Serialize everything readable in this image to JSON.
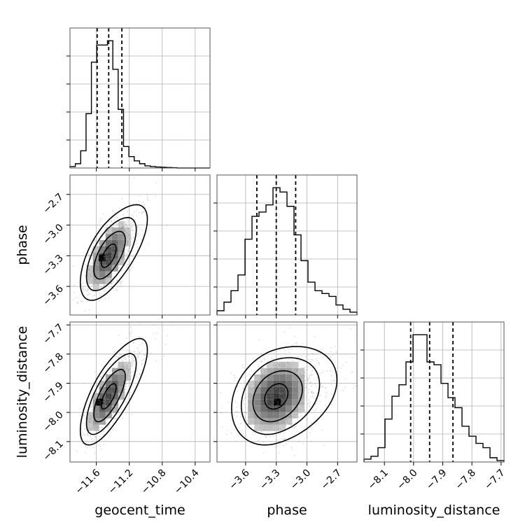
{
  "chart_data": {
    "type": "corner",
    "parameters": [
      "geocent_time",
      "phase",
      "luminosity_distance"
    ],
    "axis_labels": {
      "bottom": [
        "geocent_time",
        "phase",
        "luminosity_distance"
      ],
      "left": [
        "phase",
        "luminosity_distance"
      ]
    },
    "ranges": {
      "geocent_time": [
        -11.92,
        -10.22
      ],
      "phase": [
        -3.88,
        -2.51
      ],
      "luminosity_distance": [
        -8.17,
        -7.69
      ]
    },
    "ticks": {
      "geocent_time": [
        -11.6,
        -11.2,
        -10.8,
        -10.4
      ],
      "phase": [
        -3.6,
        -3.3,
        -3.0,
        -2.7
      ],
      "luminosity_distance": [
        -8.1,
        -8.0,
        -7.9,
        -7.8,
        -7.7
      ]
    },
    "tick_labels": {
      "geocent_time": [
        "−11.6",
        "−11.2",
        "−10.8",
        "−10.4"
      ],
      "phase": [
        "−3.6",
        "−3.3",
        "−3.0",
        "−2.7"
      ],
      "luminosity_distance": [
        "−8.1",
        "−8.0",
        "−7.9",
        "−7.8",
        "−7.7"
      ]
    },
    "quantiles": {
      "geocent_time": [
        -11.59,
        -11.45,
        -11.29
      ],
      "phase": [
        -3.49,
        -3.3,
        -3.11
      ],
      "luminosity_distance": [
        -8.01,
        -7.945,
        -7.865
      ]
    },
    "histograms": {
      "geocent_time": {
        "edges": [
          -11.92,
          -11.855,
          -11.79,
          -11.725,
          -11.66,
          -11.595,
          -11.53,
          -11.465,
          -11.4,
          -11.335,
          -11.27,
          -11.205,
          -11.14,
          -11.075,
          -11.01,
          -10.945,
          -10.88,
          -10.815,
          -10.75,
          -10.685,
          -10.62
        ],
        "counts": [
          1,
          3,
          12,
          38,
          74,
          86,
          86,
          89,
          69,
          41,
          15,
          8,
          5,
          3,
          1.5,
          1,
          0.7,
          0.5,
          0.3,
          0.2
        ]
      },
      "phase": {
        "edges": [
          -3.88,
          -3.8115,
          -3.743,
          -3.6745,
          -3.606,
          -3.5375,
          -3.469,
          -3.4005,
          -3.332,
          -3.2635,
          -3.195,
          -3.1265,
          -3.058,
          -2.9895,
          -2.921,
          -2.8525,
          -2.784,
          -2.7155,
          -2.647,
          -2.5785,
          -2.51
        ],
        "counts": [
          3,
          9,
          17,
          28,
          53,
          69,
          72,
          77,
          89,
          86,
          76,
          56,
          38,
          23,
          17,
          15,
          13,
          7,
          4,
          2
        ]
      },
      "luminosity_distance": {
        "edges": [
          -8.17,
          -8.146,
          -8.122,
          -8.098,
          -8.074,
          -8.05,
          -8.026,
          -8.002,
          -7.978,
          -7.954,
          -7.93,
          -7.906,
          -7.882,
          -7.858,
          -7.834,
          -7.81,
          -7.786,
          -7.762,
          -7.738,
          -7.714,
          -7.69
        ],
        "counts": [
          2,
          4,
          10,
          30,
          46,
          54,
          70,
          89,
          89,
          70,
          68,
          55,
          45,
          38,
          25,
          18,
          13,
          10,
          3,
          1
        ]
      }
    },
    "correlations": {
      "phase_vs_geocent_time": 0.6,
      "luminosity_distance_vs_geocent_time": 0.7,
      "luminosity_distance_vs_phase": 0.25
    },
    "peaks": {
      "phase_vs_geocent_time": [
        -11.53,
        -3.32
      ],
      "luminosity_distance_vs_geocent_time": [
        -11.56,
        -7.965
      ],
      "luminosity_distance_vs_phase": [
        -3.29,
        -7.965
      ]
    },
    "grid": true,
    "colors": {
      "line": "#000000",
      "scatter": "#808080",
      "grid": "#b0b0b0"
    }
  }
}
